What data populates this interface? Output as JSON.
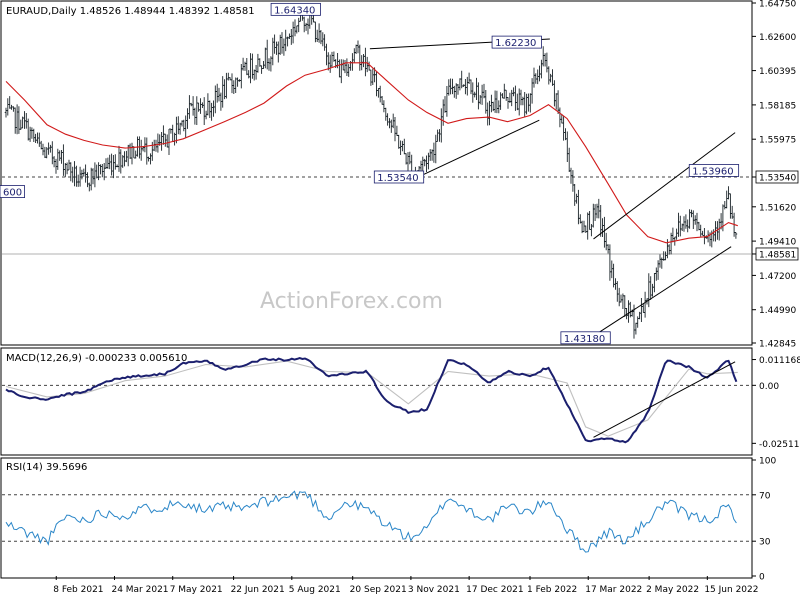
{
  "chart_data": [
    {
      "type": "candlestick",
      "header": "EURAUD,Daily  1.48526 1.48944 1.48392 1.48581",
      "watermark": "ActionForex.com",
      "ylim": [
        1.42845,
        1.6475
      ],
      "y_ticks": [
        "1.64750",
        "1.62600",
        "1.60395",
        "1.58185",
        "1.55975",
        "1.53540",
        "1.51620",
        "1.49410",
        "1.48581",
        "1.47200",
        "1.44990",
        "1.42845"
      ],
      "current_price": "1.48581",
      "reference_level": 1.5354,
      "annotations": [
        {
          "label": "1.64340",
          "value": 1.6434
        },
        {
          "label": "1.62230",
          "value": 1.6223
        },
        {
          "label": "1.53540",
          "value": 1.5354
        },
        {
          "label": "1.53960",
          "value": 1.5396
        },
        {
          "label": "1.43180",
          "value": 1.4318
        },
        {
          "label": "600",
          "value": 1.526
        }
      ],
      "trendlines": [
        {
          "from": [
            "2021-10-03",
            1.618
          ],
          "to": [
            "2022-02-16",
            1.6243
          ]
        },
        {
          "from": [
            "2021-11-05",
            1.534
          ],
          "to": [
            "2022-02-08",
            1.572
          ]
        },
        {
          "from": [
            "2022-03-21",
            1.4955
          ],
          "to": [
            "2022-07-06",
            1.564
          ]
        },
        {
          "from": [
            "2022-03-21",
            1.433
          ],
          "to": [
            "2022-07-03",
            1.4905
          ]
        }
      ],
      "series": [
        {
          "name": "price",
          "points": [
            [
              "2021-01-01",
              1.577
            ],
            [
              "2021-01-15",
              1.569
            ],
            [
              "2021-01-29",
              1.551
            ],
            [
              "2021-02-12",
              1.547
            ],
            [
              "2021-02-26",
              1.532
            ],
            [
              "2021-03-12",
              1.539
            ],
            [
              "2021-03-26",
              1.547
            ],
            [
              "2021-04-09",
              1.554
            ],
            [
              "2021-04-23",
              1.552
            ],
            [
              "2021-05-07",
              1.563
            ],
            [
              "2021-05-21",
              1.579
            ],
            [
              "2021-06-04",
              1.581
            ],
            [
              "2021-06-18",
              1.594
            ],
            [
              "2021-07-02",
              1.604
            ],
            [
              "2021-07-16",
              1.613
            ],
            [
              "2021-07-30",
              1.622
            ],
            [
              "2021-08-13",
              1.639
            ],
            [
              "2021-08-20",
              1.636
            ],
            [
              "2021-08-27",
              1.621
            ],
            [
              "2021-09-10",
              1.604
            ],
            [
              "2021-09-24",
              1.616
            ],
            [
              "2021-10-08",
              1.594
            ],
            [
              "2021-10-22",
              1.563
            ],
            [
              "2021-11-05",
              1.538
            ],
            [
              "2021-11-19",
              1.551
            ],
            [
              "2021-12-03",
              1.594
            ],
            [
              "2021-12-17",
              1.598
            ],
            [
              "2021-12-31",
              1.579
            ],
            [
              "2022-01-14",
              1.589
            ],
            [
              "2022-01-28",
              1.581
            ],
            [
              "2022-02-11",
              1.611
            ],
            [
              "2022-02-25",
              1.571
            ],
            [
              "2022-03-11",
              1.504
            ],
            [
              "2022-03-25",
              1.511
            ],
            [
              "2022-04-08",
              1.458
            ],
            [
              "2022-04-22",
              1.441
            ],
            [
              "2022-05-06",
              1.471
            ],
            [
              "2022-05-20",
              1.499
            ],
            [
              "2022-06-03",
              1.511
            ],
            [
              "2022-06-17",
              1.496
            ],
            [
              "2022-07-01",
              1.521
            ],
            [
              "2022-07-08",
              1.486
            ]
          ]
        },
        {
          "name": "moving_average",
          "points": [
            [
              "2021-01-01",
              1.597
            ],
            [
              "2021-01-15",
              1.585
            ],
            [
              "2021-02-01",
              1.569
            ],
            [
              "2021-02-15",
              1.563
            ],
            [
              "2021-03-01",
              1.559
            ],
            [
              "2021-03-15",
              1.556
            ],
            [
              "2021-04-01",
              1.554
            ],
            [
              "2021-04-15",
              1.555
            ],
            [
              "2021-05-01",
              1.557
            ],
            [
              "2021-05-15",
              1.56
            ],
            [
              "2021-06-01",
              1.566
            ],
            [
              "2021-06-15",
              1.571
            ],
            [
              "2021-07-01",
              1.577
            ],
            [
              "2021-07-15",
              1.583
            ],
            [
              "2021-08-01",
              1.594
            ],
            [
              "2021-08-15",
              1.601
            ],
            [
              "2021-09-01",
              1.605
            ],
            [
              "2021-09-15",
              1.609
            ],
            [
              "2021-10-01",
              1.609
            ],
            [
              "2021-10-15",
              1.598
            ],
            [
              "2021-11-01",
              1.585
            ],
            [
              "2021-11-15",
              1.577
            ],
            [
              "2021-12-01",
              1.57
            ],
            [
              "2021-12-15",
              1.573
            ],
            [
              "2022-01-01",
              1.574
            ],
            [
              "2022-01-15",
              1.571
            ],
            [
              "2022-02-01",
              1.575
            ],
            [
              "2022-02-15",
              1.582
            ],
            [
              "2022-03-01",
              1.573
            ],
            [
              "2022-03-15",
              1.555
            ],
            [
              "2022-04-01",
              1.531
            ],
            [
              "2022-04-15",
              1.511
            ],
            [
              "2022-05-01",
              1.497
            ],
            [
              "2022-05-15",
              1.493
            ],
            [
              "2022-06-01",
              1.496
            ],
            [
              "2022-06-15",
              1.497
            ],
            [
              "2022-07-01",
              1.506
            ],
            [
              "2022-07-08",
              1.504
            ]
          ]
        }
      ]
    },
    {
      "type": "line",
      "header": "MACD(12,26,9) -0.000233 0.005610",
      "ylim": [
        -0.0293,
        0.0153
      ],
      "y_ticks": [
        "0.011168",
        "0.00",
        "-0.025117"
      ],
      "reference_level": 0.0,
      "trendlines": [
        {
          "from": [
            "2022-03-21",
            -0.0225
          ],
          "to": [
            "2022-07-06",
            0.0102
          ]
        }
      ],
      "series": [
        {
          "name": "macd",
          "points": [
            [
              "2021-01-01",
              -0.0018
            ],
            [
              "2021-01-15",
              -0.0052
            ],
            [
              "2021-02-01",
              -0.0061
            ],
            [
              "2021-02-15",
              -0.004
            ],
            [
              "2021-03-01",
              -0.003
            ],
            [
              "2021-03-15",
              0.0012
            ],
            [
              "2021-04-01",
              0.0035
            ],
            [
              "2021-04-15",
              0.0042
            ],
            [
              "2021-05-01",
              0.005
            ],
            [
              "2021-05-15",
              0.0095
            ],
            [
              "2021-06-01",
              0.0105
            ],
            [
              "2021-06-15",
              0.007
            ],
            [
              "2021-07-01",
              0.009
            ],
            [
              "2021-07-15",
              0.0115
            ],
            [
              "2021-08-01",
              0.011
            ],
            [
              "2021-08-15",
              0.012
            ],
            [
              "2021-09-01",
              0.004
            ],
            [
              "2021-09-15",
              0.005
            ],
            [
              "2021-10-01",
              0.006
            ],
            [
              "2021-10-15",
              -0.007
            ],
            [
              "2021-11-01",
              -0.0115
            ],
            [
              "2021-11-15",
              -0.0105
            ],
            [
              "2021-12-01",
              0.011
            ],
            [
              "2021-12-15",
              0.009
            ],
            [
              "2022-01-01",
              0.001
            ],
            [
              "2022-01-15",
              0.006
            ],
            [
              "2022-02-01",
              0.004
            ],
            [
              "2022-02-15",
              0.008
            ],
            [
              "2022-03-01",
              -0.008
            ],
            [
              "2022-03-15",
              -0.024
            ],
            [
              "2022-04-01",
              -0.023
            ],
            [
              "2022-04-15",
              -0.025
            ],
            [
              "2022-05-01",
              -0.012
            ],
            [
              "2022-05-15",
              0.011
            ],
            [
              "2022-06-01",
              0.008
            ],
            [
              "2022-06-15",
              0.003
            ],
            [
              "2022-07-01",
              0.011
            ],
            [
              "2022-07-08",
              -0.0002
            ]
          ]
        },
        {
          "name": "signal",
          "points": [
            [
              "2021-01-01",
              -0.0005
            ],
            [
              "2021-02-01",
              -0.005
            ],
            [
              "2021-03-01",
              -0.0035
            ],
            [
              "2021-04-01",
              0.002
            ],
            [
              "2021-05-01",
              0.004
            ],
            [
              "2021-06-01",
              0.009
            ],
            [
              "2021-07-01",
              0.008
            ],
            [
              "2021-08-01",
              0.0105
            ],
            [
              "2021-09-01",
              0.006
            ],
            [
              "2021-10-01",
              0.0055
            ],
            [
              "2021-11-01",
              -0.008
            ],
            [
              "2021-12-01",
              0.006
            ],
            [
              "2022-01-01",
              0.004
            ],
            [
              "2022-02-01",
              0.005
            ],
            [
              "2022-03-01",
              0.001
            ],
            [
              "2022-03-15",
              -0.018
            ],
            [
              "2022-04-01",
              -0.022
            ],
            [
              "2022-05-01",
              -0.015
            ],
            [
              "2022-06-01",
              0.007
            ],
            [
              "2022-06-15",
              0.005
            ],
            [
              "2022-07-08",
              0.0056
            ]
          ]
        }
      ]
    },
    {
      "type": "line",
      "header": "RSI(14) 39.5696",
      "ylim": [
        0,
        100
      ],
      "y_ticks": [
        "100",
        "70",
        "30",
        "0"
      ],
      "reference_levels": [
        70,
        30
      ],
      "series": [
        {
          "name": "rsi",
          "points": [
            [
              "2021-01-01",
              45
            ],
            [
              "2021-01-15",
              38
            ],
            [
              "2021-02-01",
              30
            ],
            [
              "2021-02-15",
              52
            ],
            [
              "2021-03-01",
              48
            ],
            [
              "2021-03-15",
              55
            ],
            [
              "2021-04-01",
              52
            ],
            [
              "2021-04-15",
              58
            ],
            [
              "2021-05-01",
              60
            ],
            [
              "2021-05-15",
              64
            ],
            [
              "2021-06-01",
              56
            ],
            [
              "2021-06-15",
              60
            ],
            [
              "2021-07-01",
              58
            ],
            [
              "2021-07-15",
              64
            ],
            [
              "2021-08-01",
              68
            ],
            [
              "2021-08-15",
              72
            ],
            [
              "2021-09-01",
              50
            ],
            [
              "2021-09-15",
              63
            ],
            [
              "2021-10-01",
              58
            ],
            [
              "2021-10-15",
              45
            ],
            [
              "2021-11-01",
              33
            ],
            [
              "2021-11-15",
              40
            ],
            [
              "2021-12-01",
              68
            ],
            [
              "2021-12-15",
              58
            ],
            [
              "2022-01-01",
              48
            ],
            [
              "2022-01-15",
              60
            ],
            [
              "2022-02-01",
              55
            ],
            [
              "2022-02-15",
              66
            ],
            [
              "2022-03-01",
              40
            ],
            [
              "2022-03-15",
              22
            ],
            [
              "2022-04-01",
              38
            ],
            [
              "2022-04-15",
              30
            ],
            [
              "2022-05-01",
              48
            ],
            [
              "2022-05-15",
              64
            ],
            [
              "2022-06-01",
              52
            ],
            [
              "2022-06-15",
              48
            ],
            [
              "2022-07-01",
              60
            ],
            [
              "2022-07-08",
              40
            ]
          ]
        }
      ]
    }
  ],
  "x_axis": {
    "range": [
      "2020-12-29",
      "2022-07-18"
    ],
    "ticks": [
      {
        "label": "8 Feb 2021",
        "date": "2021-02-08"
      },
      {
        "label": "24 Mar 2021",
        "date": "2021-03-24"
      },
      {
        "label": "7 May 2021",
        "date": "2021-05-07"
      },
      {
        "label": "22 Jun 2021",
        "date": "2021-06-22"
      },
      {
        "label": "5 Aug 2021",
        "date": "2021-08-05"
      },
      {
        "label": "20 Sep 2021",
        "date": "2021-09-20"
      },
      {
        "label": "3 Nov 2021",
        "date": "2021-11-03"
      },
      {
        "label": "17 Dec 2021",
        "date": "2021-12-17"
      },
      {
        "label": "1 Feb 2022",
        "date": "2022-02-01"
      },
      {
        "label": "17 Mar 2022",
        "date": "2022-03-17"
      },
      {
        "label": "2 May 2022",
        "date": "2022-05-02"
      },
      {
        "label": "15 Jun 2022",
        "date": "2022-06-15"
      }
    ]
  },
  "colors": {
    "price": "#1a2328",
    "moving_average": "#d11a1a",
    "macd": "#1b1f6e",
    "signal": "#c0c0c0",
    "rsi": "#2a86c8",
    "trendline": "#000000",
    "reference": "#333333",
    "watermark": "#c8c8c8",
    "frame": "#000000",
    "grid_dash": "#444444"
  }
}
